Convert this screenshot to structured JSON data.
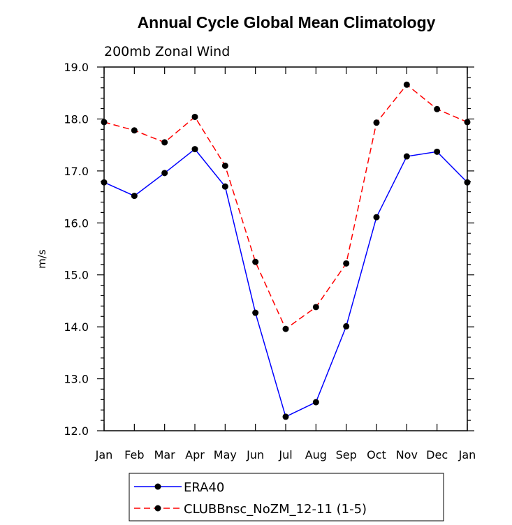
{
  "chart_data": {
    "type": "line",
    "title": "Annual Cycle Global Mean Climatology",
    "subtitle": "200mb Zonal Wind",
    "ylabel": "m/s",
    "xlabel": "",
    "categories": [
      "Jan",
      "Feb",
      "Mar",
      "Apr",
      "May",
      "Jun",
      "Jul",
      "Aug",
      "Sep",
      "Oct",
      "Nov",
      "Dec",
      "Jan"
    ],
    "yticks": [
      "12.0",
      "13.0",
      "14.0",
      "15.0",
      "16.0",
      "17.0",
      "18.0",
      "19.0"
    ],
    "ylim": [
      12.0,
      19.0
    ],
    "series": [
      {
        "name": "ERA40",
        "color": "#0000ff",
        "dash": "solid",
        "marker": "circle",
        "values": [
          16.78,
          16.52,
          16.96,
          17.42,
          16.7,
          14.27,
          12.27,
          12.55,
          14.01,
          16.11,
          17.28,
          17.37,
          16.78
        ]
      },
      {
        "name": "CLUBBnsc_NoZM_12-11 (1-5)",
        "color": "#ff0000",
        "dash": "dashed",
        "marker": "circle",
        "values": [
          17.94,
          17.78,
          17.55,
          18.04,
          17.1,
          15.25,
          13.96,
          14.38,
          15.22,
          17.93,
          18.66,
          18.19,
          17.94
        ]
      }
    ],
    "legend_position": "bottom",
    "grid": false
  }
}
